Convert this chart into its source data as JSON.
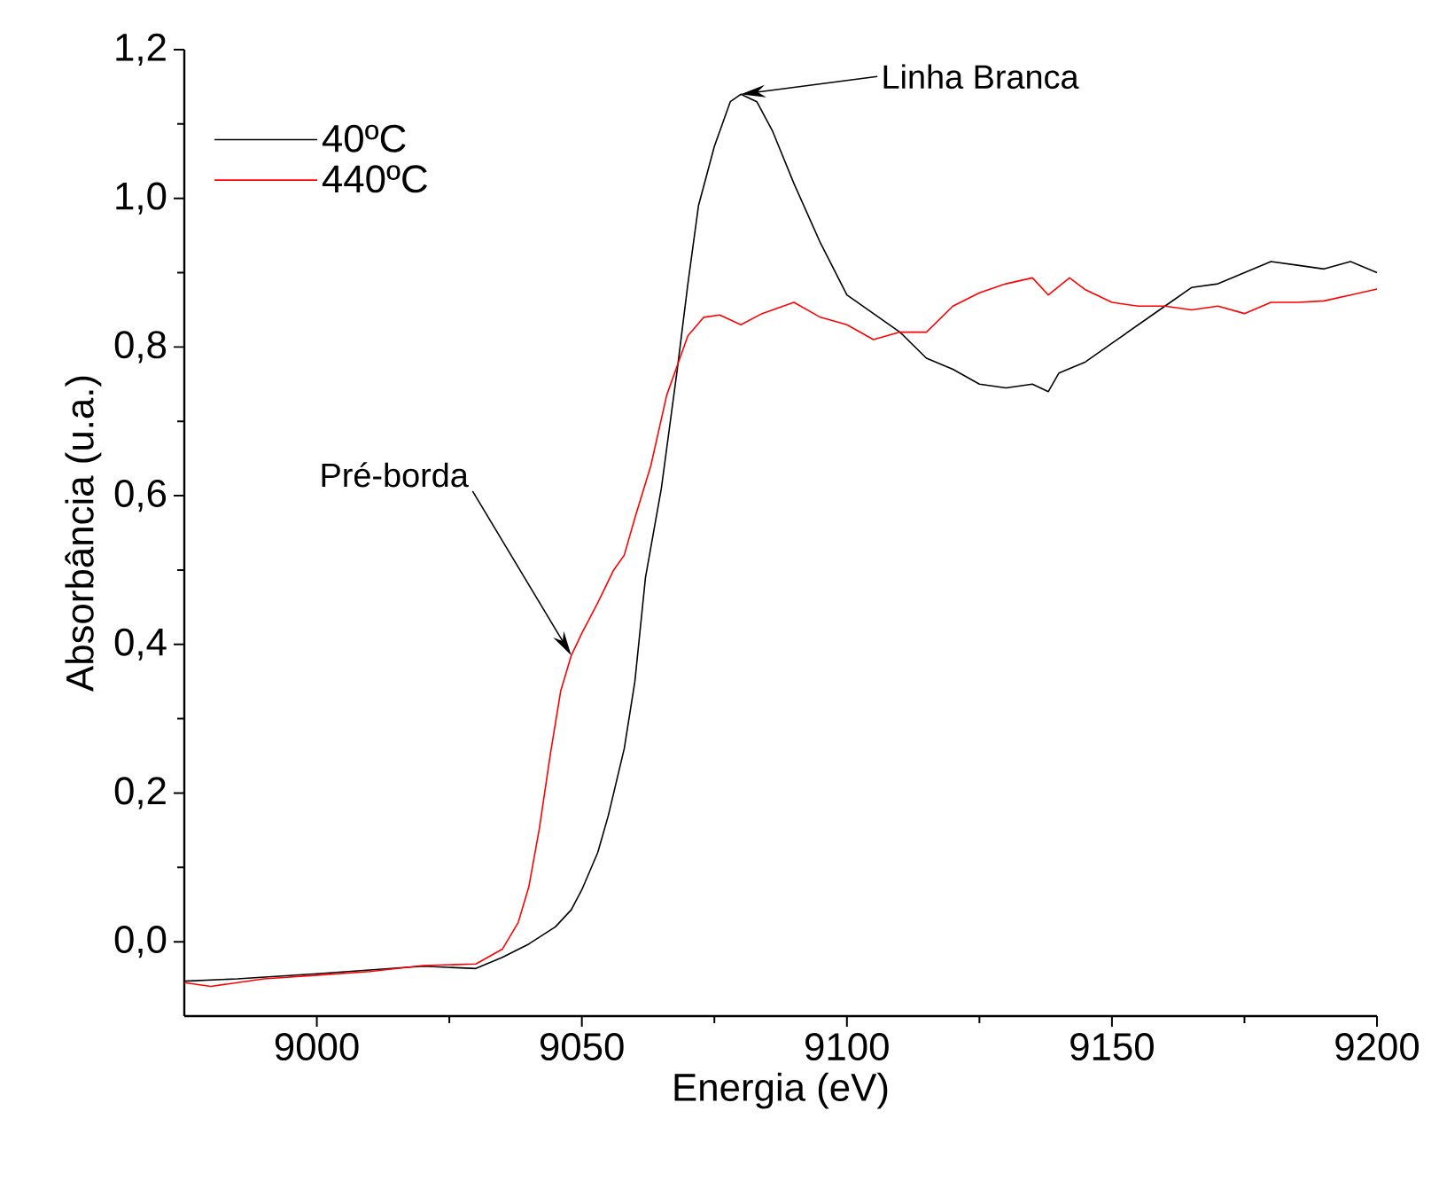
{
  "chart_data": {
    "type": "line",
    "xlabel": "Energia (eV)",
    "ylabel": "Absorbância (u.a.)",
    "xlim": [
      8975,
      9200
    ],
    "ylim": [
      -0.1,
      1.2
    ],
    "xticks": [
      9000,
      9050,
      9100,
      9150,
      9200
    ],
    "yticks": [
      {
        "value": 0,
        "label": "0,0"
      },
      {
        "value": 0.2,
        "label": "0,2"
      },
      {
        "value": 0.4,
        "label": "0,4"
      },
      {
        "value": 0.6,
        "label": "0,6"
      },
      {
        "value": 0.8,
        "label": "0,8"
      },
      {
        "value": 1.0,
        "label": "1,0"
      },
      {
        "value": 1.2,
        "label": "1,2"
      }
    ],
    "legend": "top left",
    "annotations": [
      {
        "text": "Linha Branca",
        "x": 9080,
        "y": 1.14
      },
      {
        "text": "Pré-borda",
        "x": 9048,
        "y": 0.385
      }
    ],
    "series": [
      {
        "name": "40ºC",
        "color": "#000000",
        "x": [
          8975,
          8985,
          9000,
          9010,
          9020,
          9030,
          9035,
          9040,
          9045,
          9048,
          9050,
          9053,
          9055,
          9058,
          9060,
          9062,
          9065,
          9068,
          9070,
          9072,
          9075,
          9078,
          9080,
          9083,
          9086,
          9090,
          9095,
          9100,
          9105,
          9110,
          9115,
          9120,
          9125,
          9130,
          9135,
          9138,
          9140,
          9145,
          9150,
          9155,
          9160,
          9165,
          9170,
          9175,
          9180,
          9185,
          9190,
          9195,
          9200
        ],
        "values": [
          -0.053,
          -0.05,
          -0.043,
          -0.038,
          -0.033,
          -0.036,
          -0.021,
          -0.003,
          0.02,
          0.043,
          0.07,
          0.12,
          0.17,
          0.26,
          0.35,
          0.49,
          0.61,
          0.77,
          0.885,
          0.99,
          1.07,
          1.13,
          1.14,
          1.13,
          1.09,
          1.02,
          0.94,
          0.87,
          0.845,
          0.82,
          0.785,
          0.77,
          0.75,
          0.745,
          0.75,
          0.74,
          0.765,
          0.78,
          0.805,
          0.83,
          0.855,
          0.88,
          0.885,
          0.9,
          0.915,
          0.91,
          0.905,
          0.915,
          0.9
        ]
      },
      {
        "name": "440ºC",
        "color": "#ff0000",
        "x": [
          8975,
          8980,
          8990,
          9000,
          9010,
          9020,
          9030,
          9035,
          9038,
          9040,
          9042,
          9044,
          9046,
          9048,
          9050,
          9053,
          9056,
          9058,
          9060,
          9063,
          9066,
          9068,
          9070,
          9073,
          9076,
          9080,
          9084,
          9088,
          9090,
          9095,
          9100,
          9105,
          9110,
          9115,
          9120,
          9125,
          9130,
          9135,
          9138,
          9142,
          9145,
          9150,
          9155,
          9160,
          9165,
          9170,
          9175,
          9180,
          9185,
          9190,
          9195,
          9200
        ],
        "values": [
          -0.055,
          -0.06,
          -0.05,
          -0.045,
          -0.04,
          -0.032,
          -0.03,
          -0.01,
          0.026,
          0.074,
          0.153,
          0.25,
          0.337,
          0.385,
          0.415,
          0.456,
          0.5,
          0.52,
          0.57,
          0.64,
          0.735,
          0.775,
          0.815,
          0.84,
          0.843,
          0.83,
          0.845,
          0.855,
          0.86,
          0.84,
          0.83,
          0.81,
          0.82,
          0.82,
          0.855,
          0.873,
          0.885,
          0.893,
          0.87,
          0.893,
          0.877,
          0.86,
          0.855,
          0.855,
          0.85,
          0.855,
          0.845,
          0.86,
          0.86,
          0.862,
          0.87,
          0.878
        ]
      }
    ]
  }
}
